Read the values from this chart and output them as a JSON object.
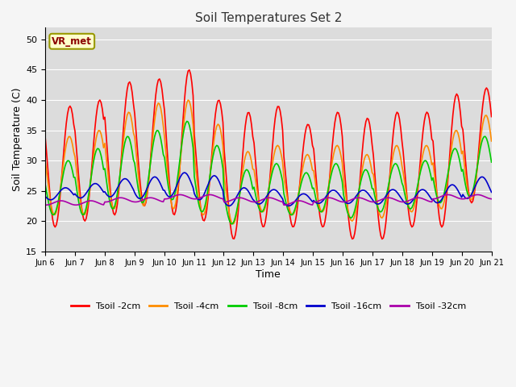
{
  "title": "Soil Temperatures Set 2",
  "xlabel": "Time",
  "ylabel": "Soil Temperature (C)",
  "ylim": [
    15,
    52
  ],
  "yticks": [
    15,
    20,
    25,
    30,
    35,
    40,
    45,
    50
  ],
  "date_labels": [
    "Jun 6",
    "Jun 7",
    "Jun 8",
    "Jun 9",
    "Jun 10",
    "Jun 11",
    "Jun 12",
    "Jun 13",
    "Jun 14",
    "Jun 15",
    "Jun 16",
    "Jun 17",
    "Jun 18",
    "Jun 19",
    "Jun 20",
    "Jun 21"
  ],
  "annotation_text": "VR_met",
  "plot_bg_color": "#dcdcdc",
  "fig_bg_color": "#f5f5f5",
  "grid_color": "#ffffff",
  "series": [
    {
      "label": "Tsoil -2cm",
      "color": "#ff0000",
      "lw": 1.2
    },
    {
      "label": "Tsoil -4cm",
      "color": "#ff8c00",
      "lw": 1.2
    },
    {
      "label": "Tsoil -8cm",
      "color": "#00cc00",
      "lw": 1.2
    },
    {
      "label": "Tsoil -16cm",
      "color": "#0000cc",
      "lw": 1.2
    },
    {
      "label": "Tsoil -32cm",
      "color": "#aa00aa",
      "lw": 1.2
    }
  ],
  "day_amps_2cm": [
    10.0,
    10.0,
    11.0,
    10.5,
    12.0,
    10.0,
    10.5,
    10.0,
    8.5,
    9.5,
    10.0,
    10.5,
    9.5,
    11.0,
    9.5
  ],
  "day_means_2cm": [
    29.0,
    30.0,
    32.0,
    33.0,
    33.0,
    30.0,
    27.5,
    29.0,
    27.5,
    28.5,
    27.0,
    27.5,
    28.5,
    30.0,
    32.5
  ],
  "day_amps_4cm": [
    6.5,
    7.0,
    8.0,
    8.5,
    9.0,
    7.5,
    6.0,
    5.5,
    5.0,
    5.5,
    5.5,
    6.0,
    5.5,
    6.5,
    7.0
  ],
  "day_means_4cm": [
    27.5,
    28.0,
    30.0,
    31.0,
    31.0,
    28.5,
    25.5,
    27.0,
    26.0,
    27.0,
    25.5,
    26.5,
    27.0,
    28.5,
    30.5
  ],
  "day_amps_8cm": [
    4.5,
    5.5,
    6.0,
    6.0,
    6.5,
    5.5,
    4.5,
    4.0,
    3.5,
    4.0,
    4.0,
    4.0,
    4.0,
    4.5,
    5.0
  ],
  "day_means_8cm": [
    25.5,
    26.5,
    28.0,
    29.0,
    30.0,
    27.0,
    24.0,
    25.5,
    24.5,
    25.5,
    24.5,
    25.5,
    26.0,
    27.5,
    29.0
  ],
  "day_amps_16cm": [
    1.0,
    1.2,
    1.5,
    1.8,
    2.0,
    2.0,
    1.5,
    1.2,
    1.0,
    1.1,
    1.1,
    1.2,
    1.2,
    1.5,
    1.8
  ],
  "day_means_16cm": [
    24.5,
    25.0,
    25.5,
    25.5,
    26.0,
    25.5,
    24.0,
    24.0,
    23.5,
    24.0,
    24.0,
    24.0,
    24.0,
    24.5,
    25.5
  ],
  "day_amps_32cm": [
    0.35,
    0.35,
    0.35,
    0.35,
    0.35,
    0.35,
    0.35,
    0.35,
    0.35,
    0.35,
    0.35,
    0.35,
    0.35,
    0.35,
    0.35
  ],
  "day_means_32cm": [
    23.0,
    23.0,
    23.5,
    23.5,
    24.0,
    24.0,
    23.5,
    23.5,
    23.0,
    23.5,
    23.5,
    23.5,
    23.5,
    24.0,
    24.0
  ],
  "depth_lags": [
    0.0,
    0.02,
    0.06,
    0.15,
    0.3
  ],
  "n_days": 15,
  "n_points": 360
}
